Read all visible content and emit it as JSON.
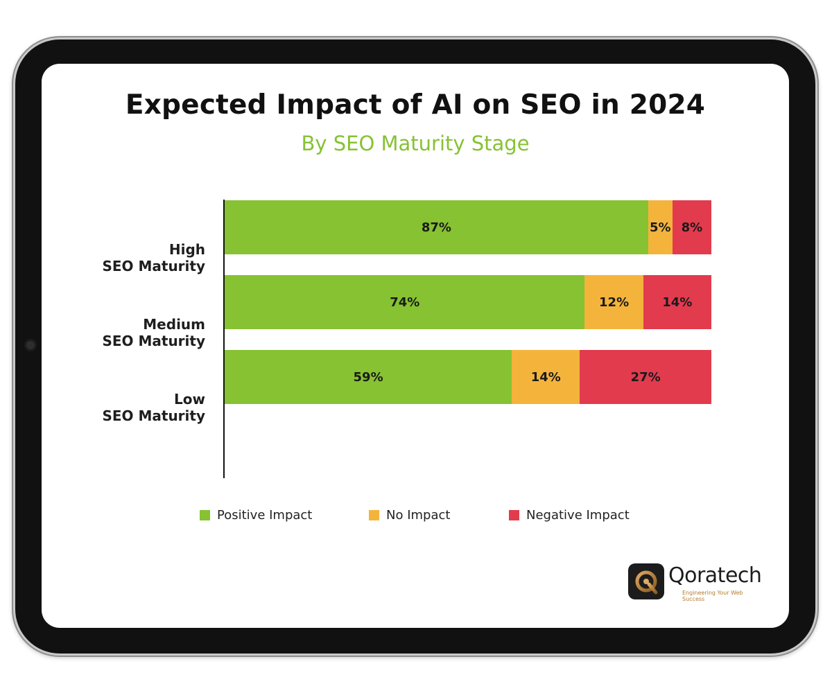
{
  "chart_data": {
    "type": "bar",
    "orientation": "horizontal",
    "stacked": true,
    "title": "Expected Impact of AI on SEO in 2024",
    "subtitle": "By SEO Maturity Stage",
    "categories": [
      [
        "High",
        "SEO Maturity"
      ],
      [
        "Medium",
        "SEO Maturity"
      ],
      [
        "Low",
        "SEO Maturity"
      ]
    ],
    "series": [
      {
        "name": "Positive Impact",
        "color": "#86c232",
        "values": [
          87,
          74,
          59
        ],
        "labels": [
          "87%",
          "74%",
          "59%"
        ]
      },
      {
        "name": "No Impact",
        "color": "#f4b43c",
        "values": [
          5,
          12,
          14
        ],
        "labels": [
          "5%",
          "12%",
          "14%"
        ]
      },
      {
        "name": "Negative Impact",
        "color": "#e23b4e",
        "values": [
          8,
          14,
          27
        ],
        "labels": [
          "8%",
          "14%",
          "27%"
        ]
      }
    ],
    "xlim": [
      0,
      100
    ],
    "legend_position": "bottom",
    "grid": false
  },
  "branding": {
    "name": "Qoratech",
    "tagline": "Engineering Your Web Success",
    "icon": "qoratech-q-logo-icon",
    "accent": "#b47a2e"
  },
  "device": {
    "camera_icon": "camera-icon"
  }
}
